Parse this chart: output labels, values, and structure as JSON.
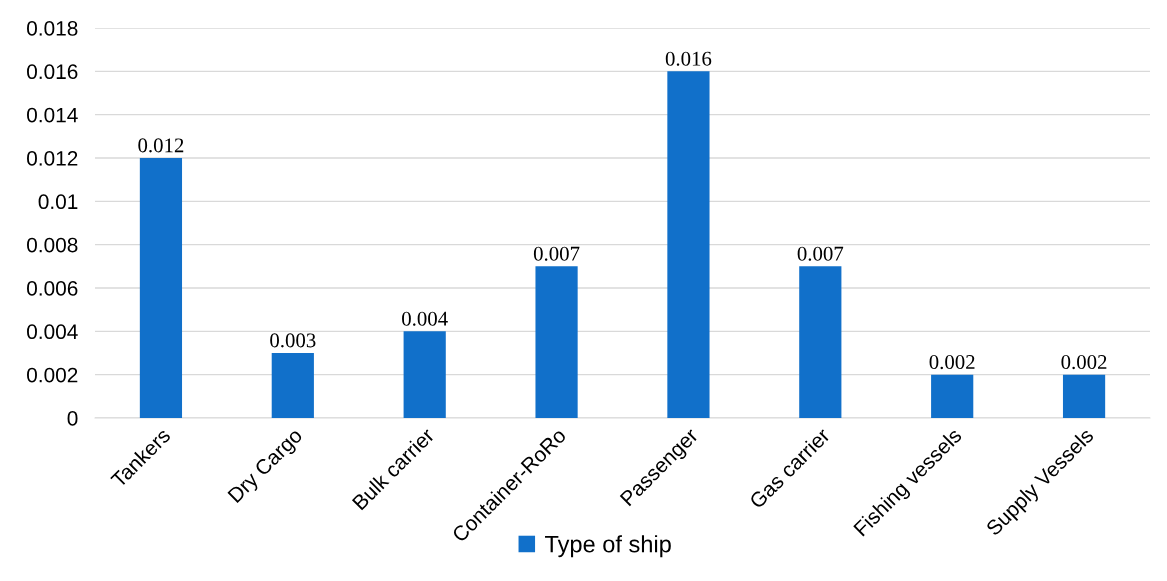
{
  "chart_data": {
    "type": "bar",
    "categories": [
      "Tankers",
      "Dry Cargo",
      "Bulk carrier",
      "Container-RoRo",
      "Passenger",
      "Gas carrier",
      "Fishing vessels",
      "Supply Vessels"
    ],
    "series": [
      {
        "name": "Type of ship",
        "color": "#1170ca",
        "values": [
          0.012,
          0.003,
          0.004,
          0.007,
          0.016,
          0.007,
          0.002,
          0.002
        ]
      }
    ],
    "ylim": [
      0,
      0.018
    ],
    "yticks": [
      0,
      0.002,
      0.004,
      0.006,
      0.008,
      0.01,
      0.012,
      0.014,
      0.016,
      0.018
    ],
    "grid": "y",
    "legend": "bottom",
    "data_labels": true
  }
}
